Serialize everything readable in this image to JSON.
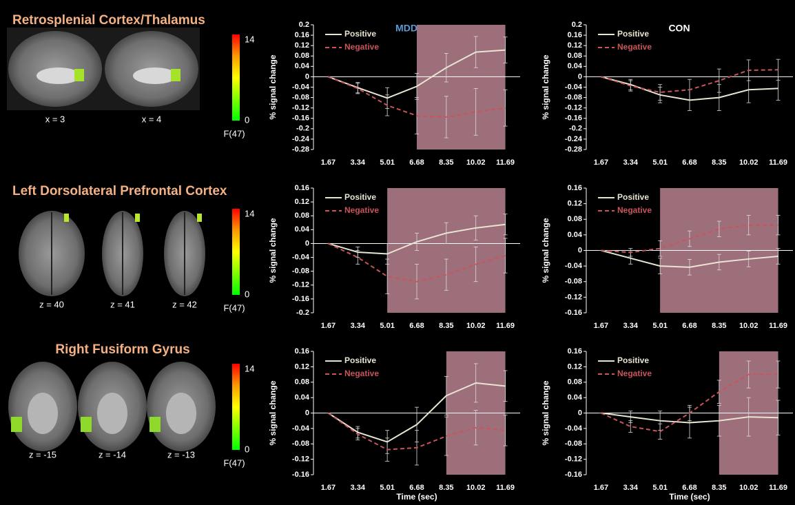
{
  "regions": [
    {
      "title": "Retrosplenial Cortex/Thalamus",
      "slices": [
        "x = 3",
        "x = 4"
      ],
      "colorbar": {
        "max": 14,
        "min": 0,
        "label": "F(47)"
      }
    },
    {
      "title": "Left Dorsolateral Prefrontal Cortex",
      "slices": [
        "z = 40",
        "z = 41",
        "z = 42"
      ],
      "colorbar": {
        "max": 14,
        "min": 0,
        "label": "F(47)"
      }
    },
    {
      "title": "Right Fusiform Gyrus",
      "slices": [
        "z = -15",
        "z = -14",
        "z = -13"
      ],
      "colorbar": {
        "max": 14,
        "min": 0,
        "label": "F(47)"
      }
    }
  ],
  "chart_data": [
    {
      "type": "line",
      "title": "MDD",
      "title_color": "#5b9bd5",
      "ylabel": "% signal change",
      "x": [
        1.67,
        3.34,
        5.01,
        6.68,
        8.35,
        10.02,
        11.69
      ],
      "xlim": [
        0.835,
        12.525
      ],
      "xticks": [
        1.67,
        3.34,
        5.01,
        6.68,
        8.35,
        10.02,
        11.69
      ],
      "ylim": [
        -0.28,
        0.2
      ],
      "yticks": [
        -0.28,
        -0.24,
        -0.2,
        -0.16,
        -0.12,
        -0.08,
        -0.04,
        0,
        0.04,
        0.08,
        0.12,
        0.16,
        0.2
      ],
      "highlight": [
        6.68,
        11.69
      ],
      "highlight_color": "#b9838f",
      "legend": "upper left",
      "series": [
        {
          "name": "Positive",
          "color": "#e9e5d3",
          "dashed": false,
          "values": [
            0,
            -0.042,
            -0.082,
            -0.037,
            0.035,
            0.095,
            0.103
          ],
          "errors": [
            0,
            0.02,
            0.04,
            0.05,
            0.055,
            0.06,
            0.05
          ]
        },
        {
          "name": "Negative",
          "color": "#c9555a",
          "dashed": true,
          "values": [
            0,
            -0.045,
            -0.11,
            -0.15,
            -0.155,
            -0.135,
            -0.12
          ],
          "errors": [
            0,
            0.02,
            0.04,
            0.07,
            0.08,
            0.09,
            0.07
          ]
        }
      ]
    },
    {
      "type": "line",
      "title": "CON",
      "title_color": "#ffffff",
      "ylabel": "% signal change",
      "x": [
        1.67,
        3.34,
        5.01,
        6.68,
        8.35,
        10.02,
        11.69
      ],
      "xlim": [
        0.835,
        12.525
      ],
      "xticks": [
        1.67,
        3.34,
        5.01,
        6.68,
        8.35,
        10.02,
        11.69
      ],
      "ylim": [
        -0.28,
        0.2
      ],
      "yticks": [
        -0.28,
        -0.24,
        -0.2,
        -0.16,
        -0.12,
        -0.08,
        -0.04,
        0,
        0.04,
        0.08,
        0.12,
        0.16,
        0.2
      ],
      "legend": "upper left",
      "series": [
        {
          "name": "Positive",
          "color": "#e9e5d3",
          "dashed": false,
          "values": [
            0,
            -0.03,
            -0.07,
            -0.09,
            -0.08,
            -0.05,
            -0.045
          ],
          "errors": [
            0,
            0.02,
            0.03,
            0.04,
            0.05,
            0.05,
            0.045
          ]
        },
        {
          "name": "Negative",
          "color": "#c9555a",
          "dashed": true,
          "values": [
            0,
            -0.035,
            -0.06,
            -0.05,
            -0.015,
            0.025,
            0.027
          ],
          "errors": [
            0,
            0.02,
            0.03,
            0.04,
            0.045,
            0.04,
            0.04
          ]
        }
      ]
    },
    {
      "type": "line",
      "ylabel": "% signal change",
      "x": [
        1.67,
        3.34,
        5.01,
        6.68,
        8.35,
        10.02,
        11.69
      ],
      "xlim": [
        0.835,
        12.525
      ],
      "xticks": [
        1.67,
        3.34,
        5.01,
        6.68,
        8.35,
        10.02,
        11.69
      ],
      "ylim": [
        -0.2,
        0.16
      ],
      "yticks": [
        -0.2,
        -0.16,
        -0.12,
        -0.08,
        -0.04,
        0,
        0.04,
        0.08,
        0.12,
        0.16
      ],
      "highlight": [
        5.01,
        11.69
      ],
      "highlight_color": "#b9838f",
      "legend": "upper left",
      "series": [
        {
          "name": "Positive",
          "color": "#e9e5d3",
          "dashed": false,
          "values": [
            0,
            -0.025,
            -0.03,
            0.005,
            0.03,
            0.045,
            0.055
          ],
          "errors": [
            0,
            0.015,
            0.03,
            0.025,
            0.03,
            0.035,
            0.03
          ]
        },
        {
          "name": "Negative",
          "color": "#c9555a",
          "dashed": true,
          "values": [
            0,
            -0.04,
            -0.095,
            -0.11,
            -0.09,
            -0.06,
            -0.035
          ],
          "errors": [
            0,
            0.02,
            0.05,
            0.05,
            0.045,
            0.05,
            0.05
          ]
        }
      ]
    },
    {
      "type": "line",
      "ylabel": "% signal change",
      "x": [
        1.67,
        3.34,
        5.01,
        6.68,
        8.35,
        10.02,
        11.69
      ],
      "xlim": [
        0.835,
        12.525
      ],
      "xticks": [
        1.67,
        3.34,
        5.01,
        6.68,
        8.35,
        10.02,
        11.69
      ],
      "ylim": [
        -0.16,
        0.16
      ],
      "yticks": [
        -0.16,
        -0.12,
        -0.08,
        -0.04,
        0,
        0.04,
        0.08,
        0.12,
        0.16
      ],
      "highlight": [
        5.01,
        11.69
      ],
      "highlight_color": "#b9838f",
      "legend": "upper left",
      "series": [
        {
          "name": "Positive",
          "color": "#e9e5d3",
          "dashed": false,
          "values": [
            0,
            -0.02,
            -0.04,
            -0.043,
            -0.03,
            -0.022,
            -0.015
          ],
          "errors": [
            0,
            0.015,
            0.02,
            0.02,
            0.02,
            0.02,
            0.02
          ]
        },
        {
          "name": "Negative",
          "color": "#c9555a",
          "dashed": true,
          "values": [
            0,
            -0.005,
            0.005,
            0.03,
            0.055,
            0.065,
            0.065
          ],
          "errors": [
            0,
            0.01,
            0.02,
            0.02,
            0.02,
            0.025,
            0.025
          ]
        }
      ]
    },
    {
      "type": "line",
      "ylabel": "% signal change",
      "xlabel": "Time (sec)",
      "x": [
        1.67,
        3.34,
        5.01,
        6.68,
        8.35,
        10.02,
        11.69
      ],
      "xlim": [
        0.835,
        12.525
      ],
      "xticks": [
        1.67,
        3.34,
        5.01,
        6.68,
        8.35,
        10.02,
        11.69
      ],
      "ylim": [
        -0.16,
        0.16
      ],
      "yticks": [
        -0.16,
        -0.12,
        -0.08,
        -0.04,
        0,
        0.04,
        0.08,
        0.12,
        0.16
      ],
      "highlight": [
        8.35,
        11.69
      ],
      "highlight_color": "#b9838f",
      "legend": "upper left",
      "series": [
        {
          "name": "Positive",
          "color": "#e9e5d3",
          "dashed": false,
          "values": [
            0,
            -0.05,
            -0.075,
            -0.03,
            0.045,
            0.078,
            0.07
          ],
          "errors": [
            0,
            0.015,
            0.03,
            0.045,
            0.05,
            0.05,
            0.04
          ]
        },
        {
          "name": "Negative",
          "color": "#c9555a",
          "dashed": true,
          "values": [
            0,
            -0.055,
            -0.095,
            -0.09,
            -0.06,
            -0.038,
            -0.045
          ],
          "errors": [
            0,
            0.015,
            0.03,
            0.045,
            0.05,
            0.045,
            0.04
          ]
        }
      ]
    },
    {
      "type": "line",
      "ylabel": "% signal change",
      "xlabel": "Time (sec)",
      "x": [
        1.67,
        3.34,
        5.01,
        6.68,
        8.35,
        10.02,
        11.69
      ],
      "xlim": [
        0.835,
        12.525
      ],
      "xticks": [
        1.67,
        3.34,
        5.01,
        6.68,
        8.35,
        10.02,
        11.69
      ],
      "ylim": [
        -0.16,
        0.16
      ],
      "yticks": [
        -0.16,
        -0.12,
        -0.08,
        -0.04,
        0,
        0.04,
        0.08,
        0.12,
        0.16
      ],
      "highlight": [
        8.35,
        11.69
      ],
      "highlight_color": "#b9838f",
      "legend": "upper left",
      "series": [
        {
          "name": "Positive",
          "color": "#e9e5d3",
          "dashed": false,
          "values": [
            0,
            -0.01,
            -0.02,
            -0.025,
            -0.02,
            -0.01,
            -0.012
          ],
          "errors": [
            0,
            0.015,
            0.025,
            0.04,
            0.04,
            0.05,
            0.045
          ]
        },
        {
          "name": "Negative",
          "color": "#c9555a",
          "dashed": true,
          "values": [
            0,
            -0.035,
            -0.048,
            0,
            0.055,
            0.1,
            0.1
          ],
          "errors": [
            0,
            0.015,
            0.02,
            0.02,
            0.03,
            0.035,
            0.035
          ]
        }
      ]
    }
  ]
}
